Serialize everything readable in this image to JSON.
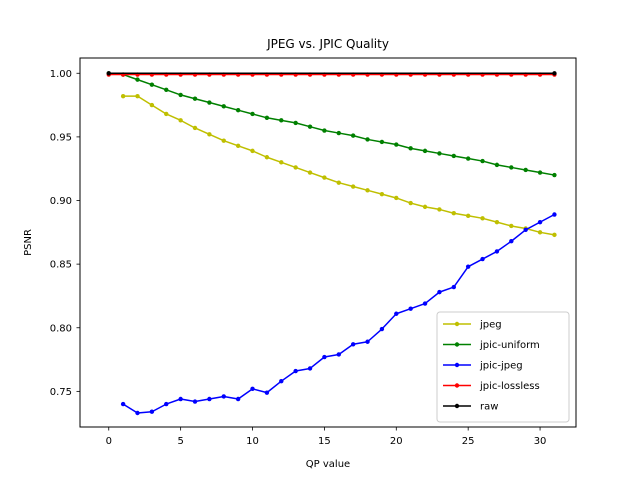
{
  "chart_data": {
    "type": "line",
    "title": "JPEG vs. JPIC Quality",
    "xlabel": "QP value",
    "ylabel": "PSNR",
    "xlim": [
      -2,
      32.5
    ],
    "ylim": [
      0.722,
      1.012
    ],
    "xticks": [
      0,
      5,
      10,
      15,
      20,
      25,
      30
    ],
    "yticks": [
      0.75,
      0.8,
      0.85,
      0.9,
      0.95,
      1.0
    ],
    "ytick_labels": [
      "0.75",
      "0.80",
      "0.85",
      "0.90",
      "0.95",
      "1.00"
    ],
    "grid": false,
    "legend_position": "lower-right",
    "series": [
      {
        "name": "jpeg",
        "color": "#bfbf00",
        "x": [
          1,
          2,
          3,
          4,
          5,
          6,
          7,
          8,
          9,
          10,
          11,
          12,
          13,
          14,
          15,
          16,
          17,
          18,
          19,
          20,
          21,
          22,
          23,
          24,
          25,
          26,
          27,
          28,
          29,
          30,
          31
        ],
        "y": [
          0.982,
          0.982,
          0.975,
          0.968,
          0.963,
          0.957,
          0.952,
          0.947,
          0.943,
          0.939,
          0.934,
          0.93,
          0.926,
          0.922,
          0.918,
          0.914,
          0.911,
          0.908,
          0.905,
          0.902,
          0.898,
          0.895,
          0.893,
          0.89,
          0.888,
          0.886,
          0.883,
          0.88,
          0.878,
          0.875,
          0.873
        ]
      },
      {
        "name": "jpic-uniform",
        "color": "#008000",
        "x": [
          0,
          1,
          2,
          3,
          4,
          5,
          6,
          7,
          8,
          9,
          10,
          11,
          12,
          13,
          14,
          15,
          16,
          17,
          18,
          19,
          20,
          21,
          22,
          23,
          24,
          25,
          26,
          27,
          28,
          29,
          30,
          31
        ],
        "y": [
          1.0,
          0.999,
          0.995,
          0.991,
          0.987,
          0.983,
          0.98,
          0.977,
          0.974,
          0.971,
          0.968,
          0.965,
          0.963,
          0.961,
          0.958,
          0.955,
          0.953,
          0.951,
          0.948,
          0.946,
          0.944,
          0.941,
          0.939,
          0.937,
          0.935,
          0.933,
          0.931,
          0.928,
          0.926,
          0.924,
          0.922,
          0.92
        ]
      },
      {
        "name": "jpic-jpeg",
        "color": "#0000ff",
        "x": [
          1,
          2,
          3,
          4,
          5,
          6,
          7,
          8,
          9,
          10,
          11,
          12,
          13,
          14,
          15,
          16,
          17,
          18,
          19,
          20,
          21,
          22,
          23,
          24,
          25,
          26,
          27,
          28,
          29,
          30,
          31
        ],
        "y": [
          0.74,
          0.733,
          0.734,
          0.74,
          0.744,
          0.742,
          0.744,
          0.746,
          0.744,
          0.752,
          0.749,
          0.758,
          0.766,
          0.768,
          0.777,
          0.779,
          0.787,
          0.789,
          0.799,
          0.811,
          0.815,
          0.819,
          0.828,
          0.832,
          0.848,
          0.854,
          0.86,
          0.868,
          0.877,
          0.883,
          0.889
        ]
      },
      {
        "name": "jpic-lossless",
        "color": "#ff0000",
        "x": [
          0,
          1,
          2,
          3,
          4,
          5,
          6,
          7,
          8,
          9,
          10,
          11,
          12,
          13,
          14,
          15,
          16,
          17,
          18,
          19,
          20,
          21,
          22,
          23,
          24,
          25,
          26,
          27,
          28,
          29,
          30,
          31
        ],
        "y": [
          0.999,
          0.999,
          0.999,
          0.999,
          0.999,
          0.999,
          0.999,
          0.999,
          0.999,
          0.999,
          0.999,
          0.999,
          0.999,
          0.999,
          0.999,
          0.999,
          0.999,
          0.999,
          0.999,
          0.999,
          0.999,
          0.999,
          0.999,
          0.999,
          0.999,
          0.999,
          0.999,
          0.999,
          0.999,
          0.999,
          0.999,
          0.999
        ]
      },
      {
        "name": "raw",
        "color": "#000000",
        "x": [
          0,
          31
        ],
        "y": [
          1.0,
          1.0
        ]
      }
    ]
  }
}
